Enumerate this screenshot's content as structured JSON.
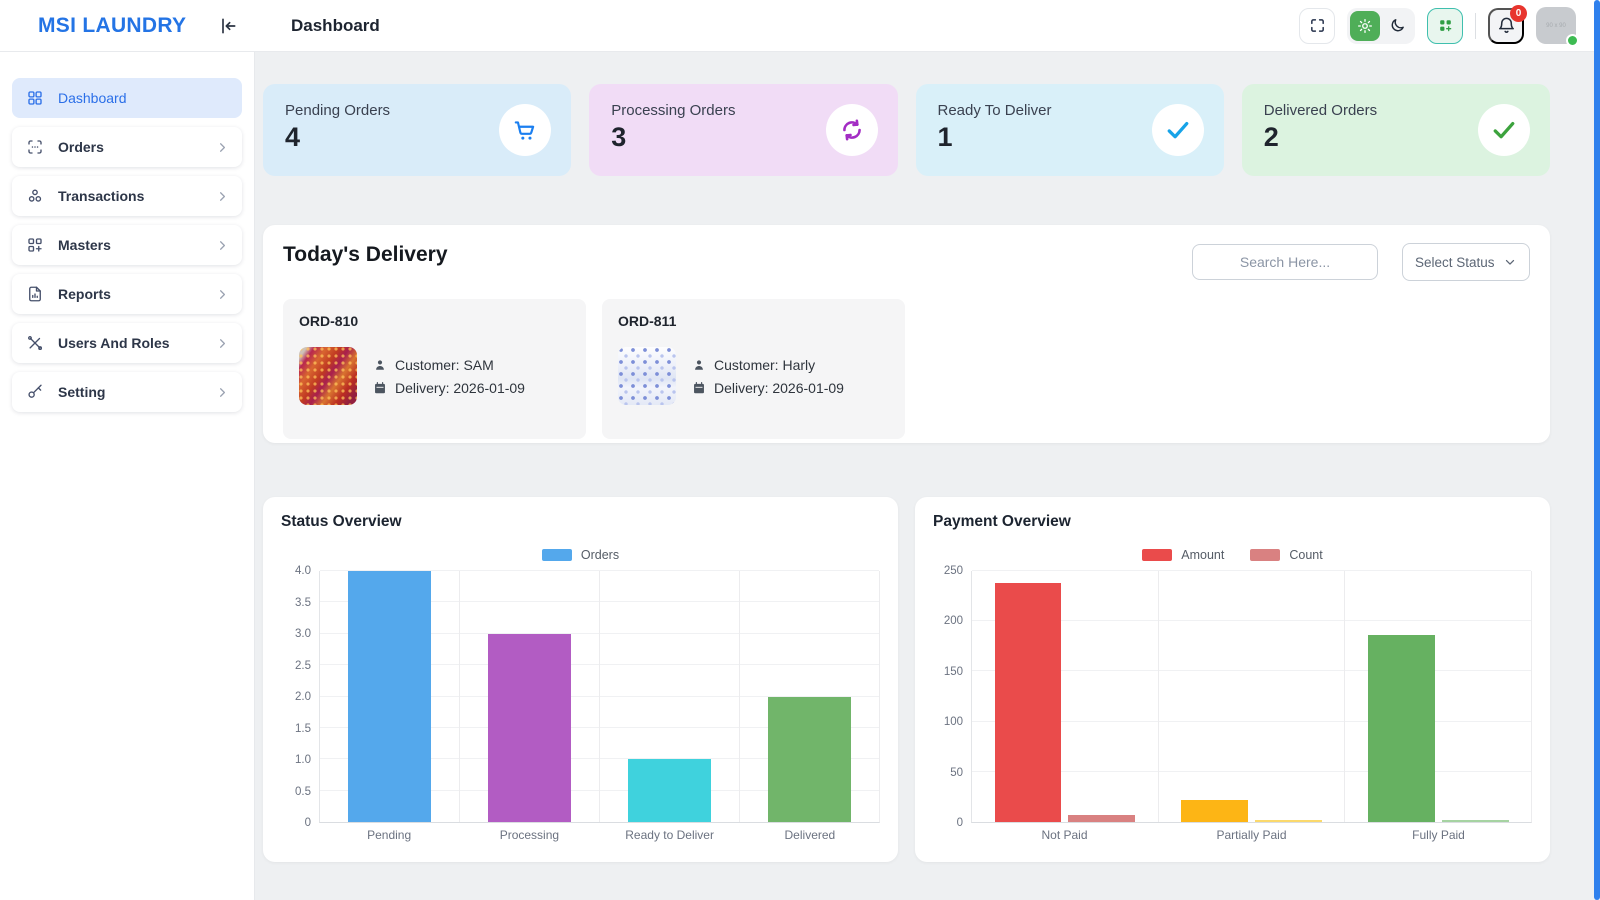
{
  "header": {
    "brand": "MSI LAUNDRY",
    "page_title": "Dashboard",
    "notification_badge": "0",
    "avatar_placeholder": "90 x 90"
  },
  "sidebar": {
    "items": [
      {
        "label": "Dashboard",
        "icon": "dashboard-icon",
        "active": true,
        "chevron": false
      },
      {
        "label": "Orders",
        "icon": "orders-icon",
        "active": false,
        "chevron": true
      },
      {
        "label": "Transactions",
        "icon": "transactions-icon",
        "active": false,
        "chevron": true
      },
      {
        "label": "Masters",
        "icon": "masters-icon",
        "active": false,
        "chevron": true
      },
      {
        "label": "Reports",
        "icon": "reports-icon",
        "active": false,
        "chevron": true
      },
      {
        "label": "Users And Roles",
        "icon": "users-roles-icon",
        "active": false,
        "chevron": true
      },
      {
        "label": "Setting",
        "icon": "setting-icon",
        "active": false,
        "chevron": true
      }
    ]
  },
  "stat_cards": [
    {
      "label": "Pending Orders",
      "value": "4",
      "icon": "cart-icon",
      "bg": "#d9ecf9",
      "icon_color": "#1b7ff0"
    },
    {
      "label": "Processing Orders",
      "value": "3",
      "icon": "sync-icon",
      "bg": "#f1dcf6",
      "icon_color": "#a32cc4"
    },
    {
      "label": "Ready To Deliver",
      "value": "1",
      "icon": "check-icon",
      "bg": "#d9f0f9",
      "icon_color": "#17a3e8"
    },
    {
      "label": "Delivered Orders",
      "value": "2",
      "icon": "check-icon",
      "bg": "#dcf3e0",
      "icon_color": "#3ca33d"
    }
  ],
  "delivery": {
    "title": "Today's Delivery",
    "search_placeholder": "Search Here...",
    "status_select_value": "Select Status",
    "orders": [
      {
        "id": "ORD-810",
        "customer": "Customer: SAM",
        "delivery_date": "Delivery: 2026-01-09",
        "image": "red-saree"
      },
      {
        "id": "ORD-811",
        "customer": "Customer: Harly",
        "delivery_date": "Delivery: 2026-01-09",
        "image": "blue-floral"
      }
    ]
  },
  "chart_data": [
    {
      "type": "bar",
      "title": "Status Overview",
      "legend": [
        {
          "label": "Orders",
          "color": "#54a8ec"
        }
      ],
      "legend_position": "top-center",
      "categories": [
        "Pending",
        "Processing",
        "Ready to Deliver",
        "Delivered"
      ],
      "values": [
        4,
        3,
        1,
        2
      ],
      "bar_colors": [
        "#54a8ec",
        "#b25cc3",
        "#3fd2dd",
        "#71b56a"
      ],
      "ylim": [
        0,
        4
      ],
      "ytick_labels": [
        "4.0",
        "3.5",
        "3.0",
        "2.5",
        "2.0",
        "1.5",
        "1.0",
        "0.5",
        "0"
      ],
      "grid": true,
      "bar_width_pct": 60
    },
    {
      "type": "bar",
      "title": "Payment Overview",
      "legend": [
        {
          "label": "Amount",
          "color": "#ea4b4b"
        },
        {
          "label": "Count",
          "color": "#d98181"
        }
      ],
      "legend_position": "top-center",
      "categories": [
        "Not Paid",
        "Partially Paid",
        "Fully Paid"
      ],
      "series": [
        {
          "name": "Amount",
          "values": [
            238,
            22,
            186
          ],
          "colors": [
            "#ea4b4b",
            "#fdb515",
            "#66b161"
          ]
        },
        {
          "name": "Count",
          "values": [
            7,
            2,
            2
          ],
          "colors": [
            "#d98181",
            "#fbd96c",
            "#a6d3a2"
          ]
        }
      ],
      "ylim": [
        0,
        250
      ],
      "ytick_labels": [
        "250",
        "200",
        "150",
        "100",
        "50",
        "0"
      ],
      "grid": true,
      "bar_width_pct": 36
    }
  ]
}
